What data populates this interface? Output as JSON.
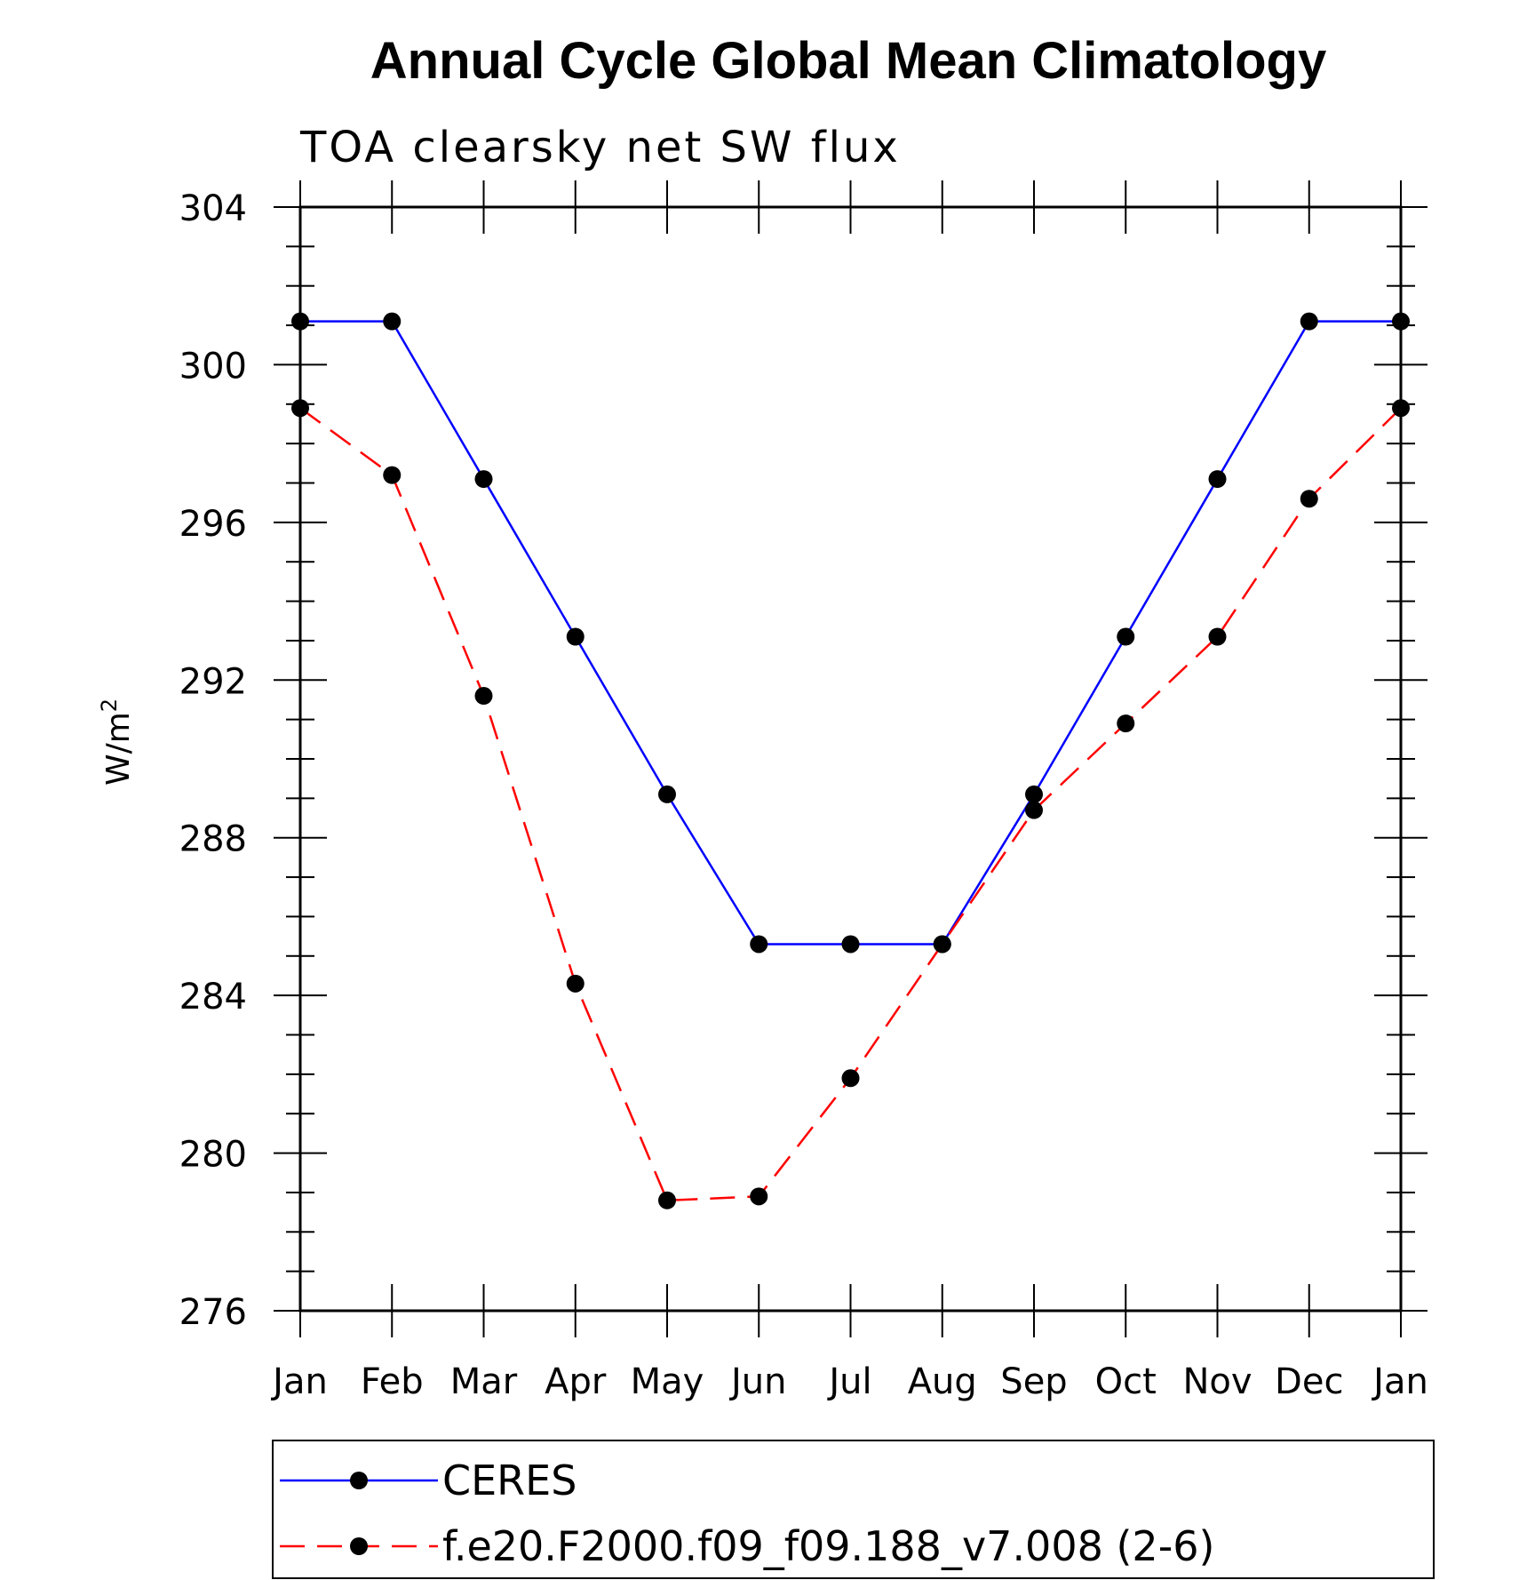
{
  "chart_data": {
    "type": "line",
    "title": "Annual Cycle Global Mean Climatology",
    "subtitle": "TOA clearsky net SW flux",
    "xlabel": "",
    "ylabel": "W/m",
    "ylabel_superscript": "2",
    "categories": [
      "Jan",
      "Feb",
      "Mar",
      "Apr",
      "May",
      "Jun",
      "Jul",
      "Aug",
      "Sep",
      "Oct",
      "Nov",
      "Dec",
      "Jan"
    ],
    "ylim": [
      276,
      304
    ],
    "yticks": [
      276,
      280,
      284,
      288,
      292,
      296,
      300,
      304
    ],
    "grid": false,
    "legend_position": "bottom",
    "series": [
      {
        "name": "CERES",
        "color": "#0000ff",
        "dash": "solid",
        "values": [
          301.1,
          301.1,
          297.1,
          293.1,
          289.1,
          285.3,
          285.3,
          285.3,
          289.1,
          293.1,
          297.1,
          301.1,
          301.1
        ]
      },
      {
        "name": "f.e20.F2000.f09_f09.188_v7.008 (2-6)",
        "color": "#ff0000",
        "dash": "dashed",
        "values": [
          298.9,
          297.2,
          291.6,
          284.3,
          278.8,
          278.9,
          281.9,
          285.3,
          288.7,
          290.9,
          293.1,
          296.6,
          298.9
        ]
      }
    ]
  }
}
